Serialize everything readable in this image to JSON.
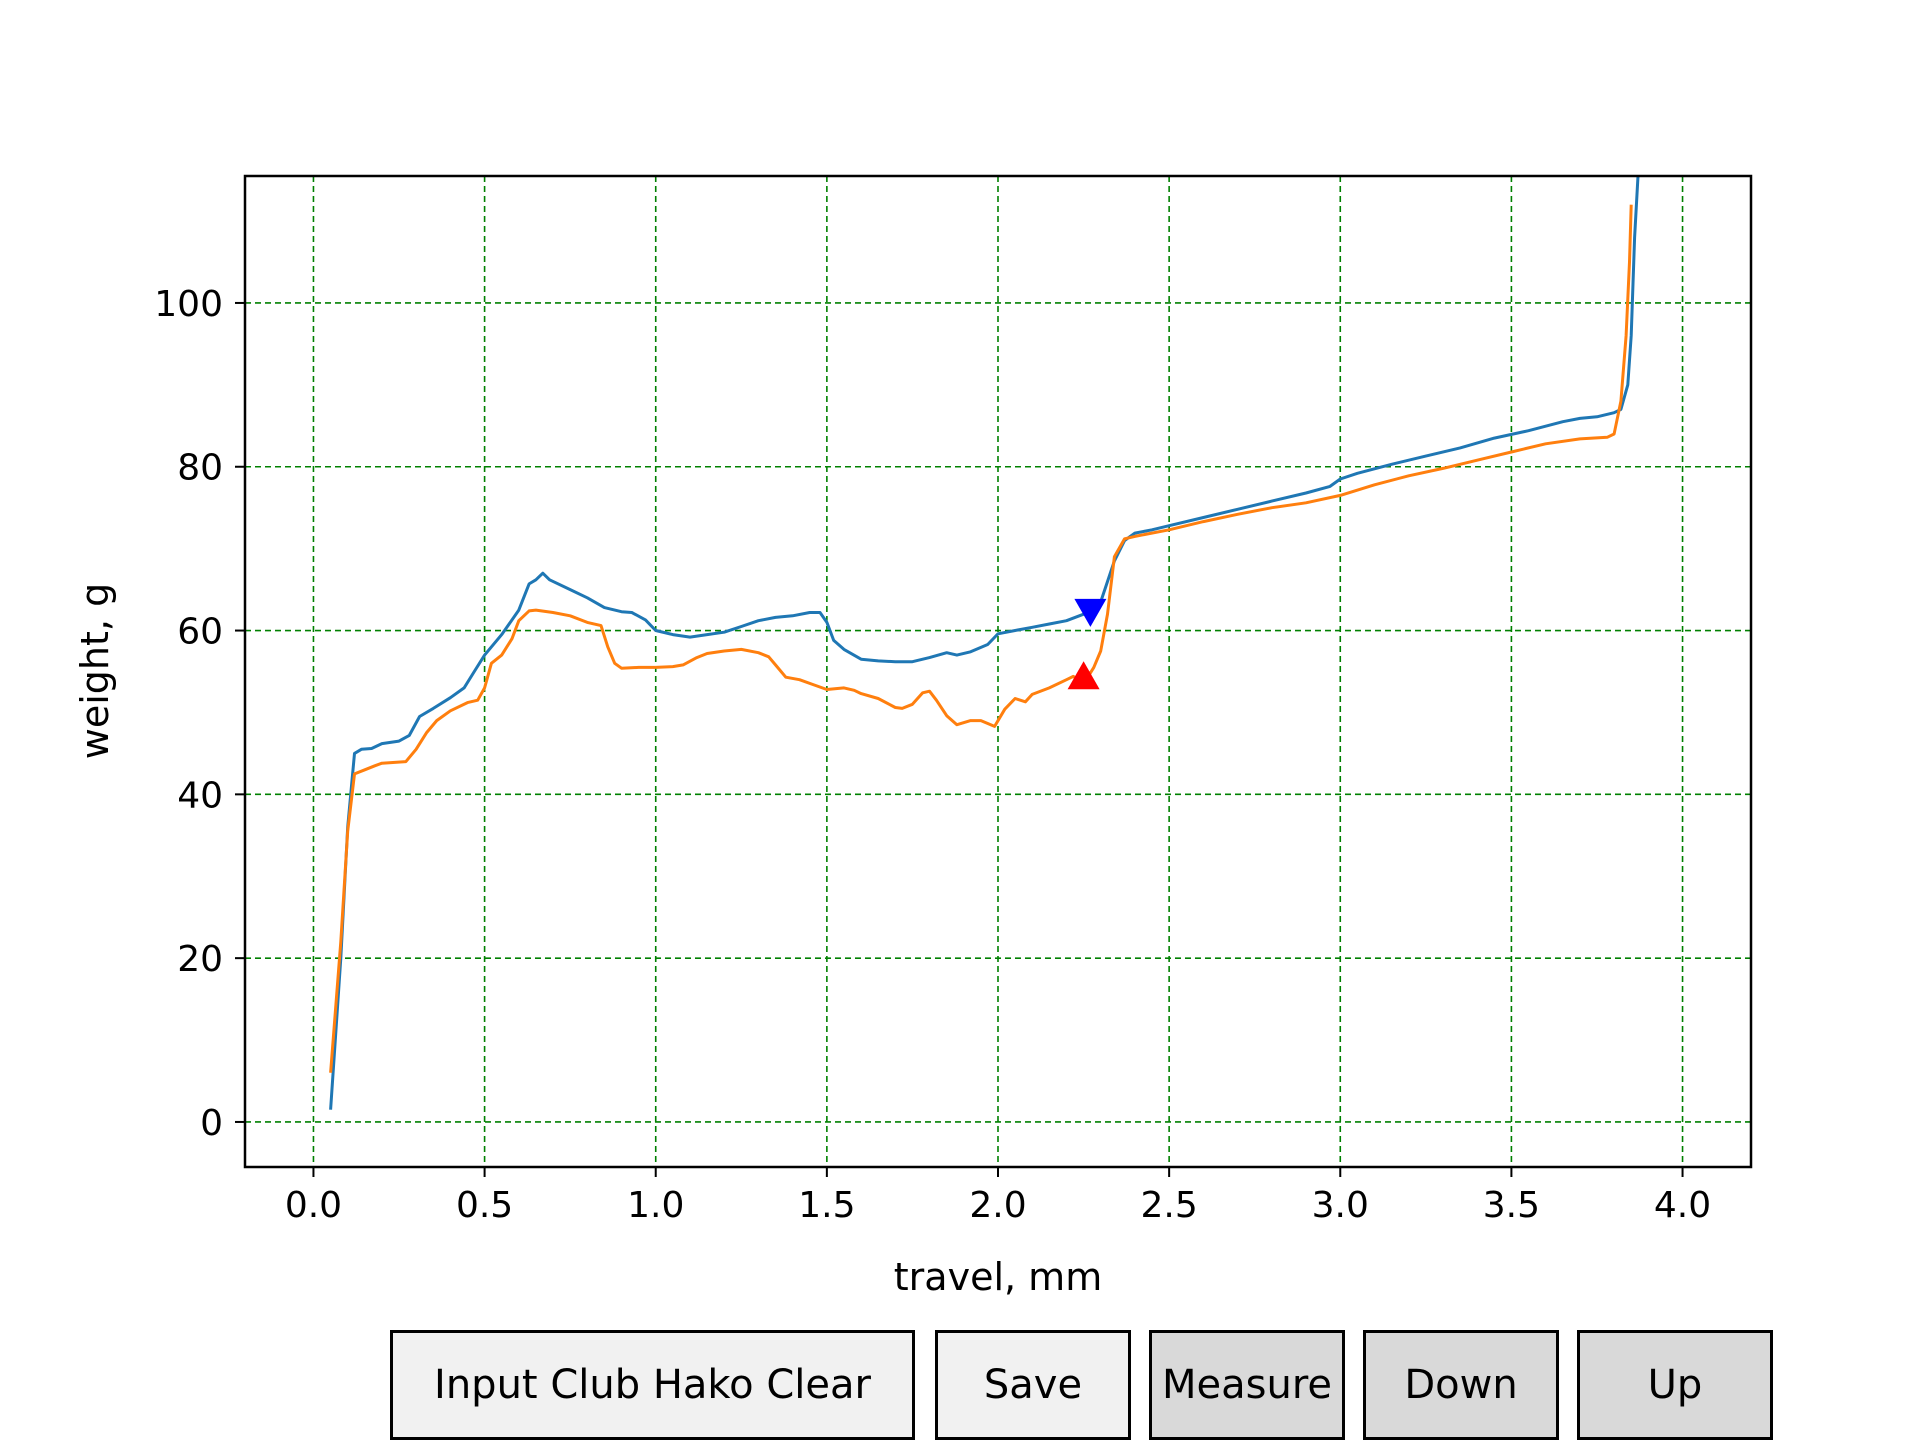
{
  "chart_data": {
    "type": "line",
    "xlabel": "travel, mm",
    "ylabel": "weight, g",
    "xlim": [
      -0.2,
      4.2
    ],
    "ylim": [
      -5.5,
      115.5
    ],
    "xticks": [
      0.0,
      0.5,
      1.0,
      1.5,
      2.0,
      2.5,
      3.0,
      3.5,
      4.0
    ],
    "xtick_labels": [
      "0.0",
      "0.5",
      "1.0",
      "1.5",
      "2.0",
      "2.5",
      "3.0",
      "3.5",
      "4.0"
    ],
    "yticks": [
      0,
      20,
      40,
      60,
      80,
      100
    ],
    "ytick_labels": [
      "0",
      "20",
      "40",
      "60",
      "80",
      "100"
    ],
    "grid": true,
    "grid_color": "#008000",
    "series": [
      {
        "color": "#1f77b4",
        "points": [
          [
            0.05,
            1.5
          ],
          [
            0.08,
            20
          ],
          [
            0.1,
            36
          ],
          [
            0.12,
            45
          ],
          [
            0.14,
            45.5
          ],
          [
            0.17,
            45.6
          ],
          [
            0.2,
            46.2
          ],
          [
            0.25,
            46.5
          ],
          [
            0.28,
            47.2
          ],
          [
            0.31,
            49.5
          ],
          [
            0.35,
            50.5
          ],
          [
            0.4,
            51.8
          ],
          [
            0.44,
            53
          ],
          [
            0.47,
            55
          ],
          [
            0.5,
            57
          ],
          [
            0.55,
            59.5
          ],
          [
            0.6,
            62.5
          ],
          [
            0.63,
            65.7
          ],
          [
            0.65,
            66.2
          ],
          [
            0.67,
            67
          ],
          [
            0.69,
            66.2
          ],
          [
            0.75,
            65
          ],
          [
            0.8,
            64
          ],
          [
            0.85,
            62.8
          ],
          [
            0.9,
            62.3
          ],
          [
            0.93,
            62.2
          ],
          [
            0.97,
            61.3
          ],
          [
            1.0,
            60
          ],
          [
            1.05,
            59.5
          ],
          [
            1.1,
            59.2
          ],
          [
            1.15,
            59.5
          ],
          [
            1.2,
            59.8
          ],
          [
            1.25,
            60.5
          ],
          [
            1.3,
            61.2
          ],
          [
            1.35,
            61.6
          ],
          [
            1.4,
            61.8
          ],
          [
            1.45,
            62.2
          ],
          [
            1.48,
            62.2
          ],
          [
            1.5,
            61
          ],
          [
            1.52,
            58.8
          ],
          [
            1.55,
            57.7
          ],
          [
            1.6,
            56.5
          ],
          [
            1.65,
            56.3
          ],
          [
            1.7,
            56.2
          ],
          [
            1.75,
            56.2
          ],
          [
            1.8,
            56.7
          ],
          [
            1.85,
            57.3
          ],
          [
            1.88,
            57
          ],
          [
            1.92,
            57.4
          ],
          [
            1.97,
            58.3
          ],
          [
            2.0,
            59.6
          ],
          [
            2.05,
            60
          ],
          [
            2.1,
            60.4
          ],
          [
            2.15,
            60.8
          ],
          [
            2.2,
            61.2
          ],
          [
            2.25,
            62
          ],
          [
            2.3,
            63.5
          ],
          [
            2.34,
            68.5
          ],
          [
            2.37,
            71
          ],
          [
            2.4,
            71.9
          ],
          [
            2.45,
            72.3
          ],
          [
            2.5,
            72.8
          ],
          [
            2.6,
            73.8
          ],
          [
            2.7,
            74.8
          ],
          [
            2.8,
            75.8
          ],
          [
            2.9,
            76.8
          ],
          [
            2.97,
            77.6
          ],
          [
            3.0,
            78.5
          ],
          [
            3.05,
            79.2
          ],
          [
            3.15,
            80.3
          ],
          [
            3.25,
            81.3
          ],
          [
            3.35,
            82.3
          ],
          [
            3.45,
            83.5
          ],
          [
            3.55,
            84.4
          ],
          [
            3.65,
            85.5
          ],
          [
            3.7,
            85.9
          ],
          [
            3.75,
            86.1
          ],
          [
            3.8,
            86.6
          ],
          [
            3.82,
            87
          ],
          [
            3.84,
            90
          ],
          [
            3.85,
            96
          ],
          [
            3.86,
            108
          ],
          [
            3.87,
            115.5
          ]
        ]
      },
      {
        "color": "#ff7f0e",
        "points": [
          [
            0.05,
            6
          ],
          [
            0.08,
            22
          ],
          [
            0.1,
            35.5
          ],
          [
            0.12,
            42.5
          ],
          [
            0.15,
            43
          ],
          [
            0.18,
            43.5
          ],
          [
            0.2,
            43.8
          ],
          [
            0.27,
            44
          ],
          [
            0.3,
            45.5
          ],
          [
            0.33,
            47.5
          ],
          [
            0.36,
            49
          ],
          [
            0.4,
            50.2
          ],
          [
            0.45,
            51.2
          ],
          [
            0.48,
            51.5
          ],
          [
            0.5,
            53
          ],
          [
            0.52,
            56
          ],
          [
            0.55,
            57
          ],
          [
            0.58,
            59
          ],
          [
            0.6,
            61.2
          ],
          [
            0.63,
            62.4
          ],
          [
            0.65,
            62.5
          ],
          [
            0.7,
            62.2
          ],
          [
            0.75,
            61.8
          ],
          [
            0.8,
            61
          ],
          [
            0.84,
            60.6
          ],
          [
            0.86,
            58
          ],
          [
            0.88,
            56
          ],
          [
            0.9,
            55.4
          ],
          [
            0.95,
            55.5
          ],
          [
            1.0,
            55.5
          ],
          [
            1.05,
            55.6
          ],
          [
            1.08,
            55.8
          ],
          [
            1.12,
            56.7
          ],
          [
            1.15,
            57.2
          ],
          [
            1.2,
            57.5
          ],
          [
            1.25,
            57.7
          ],
          [
            1.3,
            57.3
          ],
          [
            1.33,
            56.8
          ],
          [
            1.35,
            55.8
          ],
          [
            1.38,
            54.3
          ],
          [
            1.42,
            54
          ],
          [
            1.46,
            53.4
          ],
          [
            1.5,
            52.8
          ],
          [
            1.55,
            53
          ],
          [
            1.58,
            52.7
          ],
          [
            1.6,
            52.3
          ],
          [
            1.65,
            51.7
          ],
          [
            1.7,
            50.6
          ],
          [
            1.72,
            50.5
          ],
          [
            1.75,
            51
          ],
          [
            1.78,
            52.4
          ],
          [
            1.8,
            52.6
          ],
          [
            1.82,
            51.5
          ],
          [
            1.85,
            49.6
          ],
          [
            1.88,
            48.5
          ],
          [
            1.92,
            49
          ],
          [
            1.95,
            49
          ],
          [
            1.99,
            48.3
          ],
          [
            2.02,
            50.4
          ],
          [
            2.05,
            51.7
          ],
          [
            2.08,
            51.3
          ],
          [
            2.1,
            52.2
          ],
          [
            2.15,
            53
          ],
          [
            2.2,
            54
          ],
          [
            2.22,
            54.4
          ],
          [
            2.25,
            53.5
          ],
          [
            2.28,
            55.5
          ],
          [
            2.3,
            57.5
          ],
          [
            2.32,
            62
          ],
          [
            2.34,
            69
          ],
          [
            2.37,
            71.2
          ],
          [
            2.4,
            71.5
          ],
          [
            2.5,
            72.3
          ],
          [
            2.6,
            73.3
          ],
          [
            2.7,
            74.2
          ],
          [
            2.8,
            75
          ],
          [
            2.9,
            75.6
          ],
          [
            3.0,
            76.5
          ],
          [
            3.1,
            77.8
          ],
          [
            3.2,
            78.9
          ],
          [
            3.3,
            79.8
          ],
          [
            3.4,
            80.8
          ],
          [
            3.5,
            81.8
          ],
          [
            3.6,
            82.8
          ],
          [
            3.7,
            83.4
          ],
          [
            3.78,
            83.6
          ],
          [
            3.8,
            84
          ],
          [
            3.82,
            88
          ],
          [
            3.835,
            96
          ],
          [
            3.845,
            105
          ],
          [
            3.85,
            112
          ]
        ]
      }
    ],
    "markers": [
      {
        "shape": "triangle-down",
        "color": "#0000ff",
        "x": 2.27,
        "y": 62.2
      },
      {
        "shape": "triangle-up",
        "color": "#ff0000",
        "x": 2.25,
        "y": 54.5
      }
    ]
  },
  "buttons": {
    "input_club_hako_clear": "Input Club Hako Clear",
    "save": "Save",
    "measure": "Measure",
    "down": "Down",
    "up": "Up"
  }
}
